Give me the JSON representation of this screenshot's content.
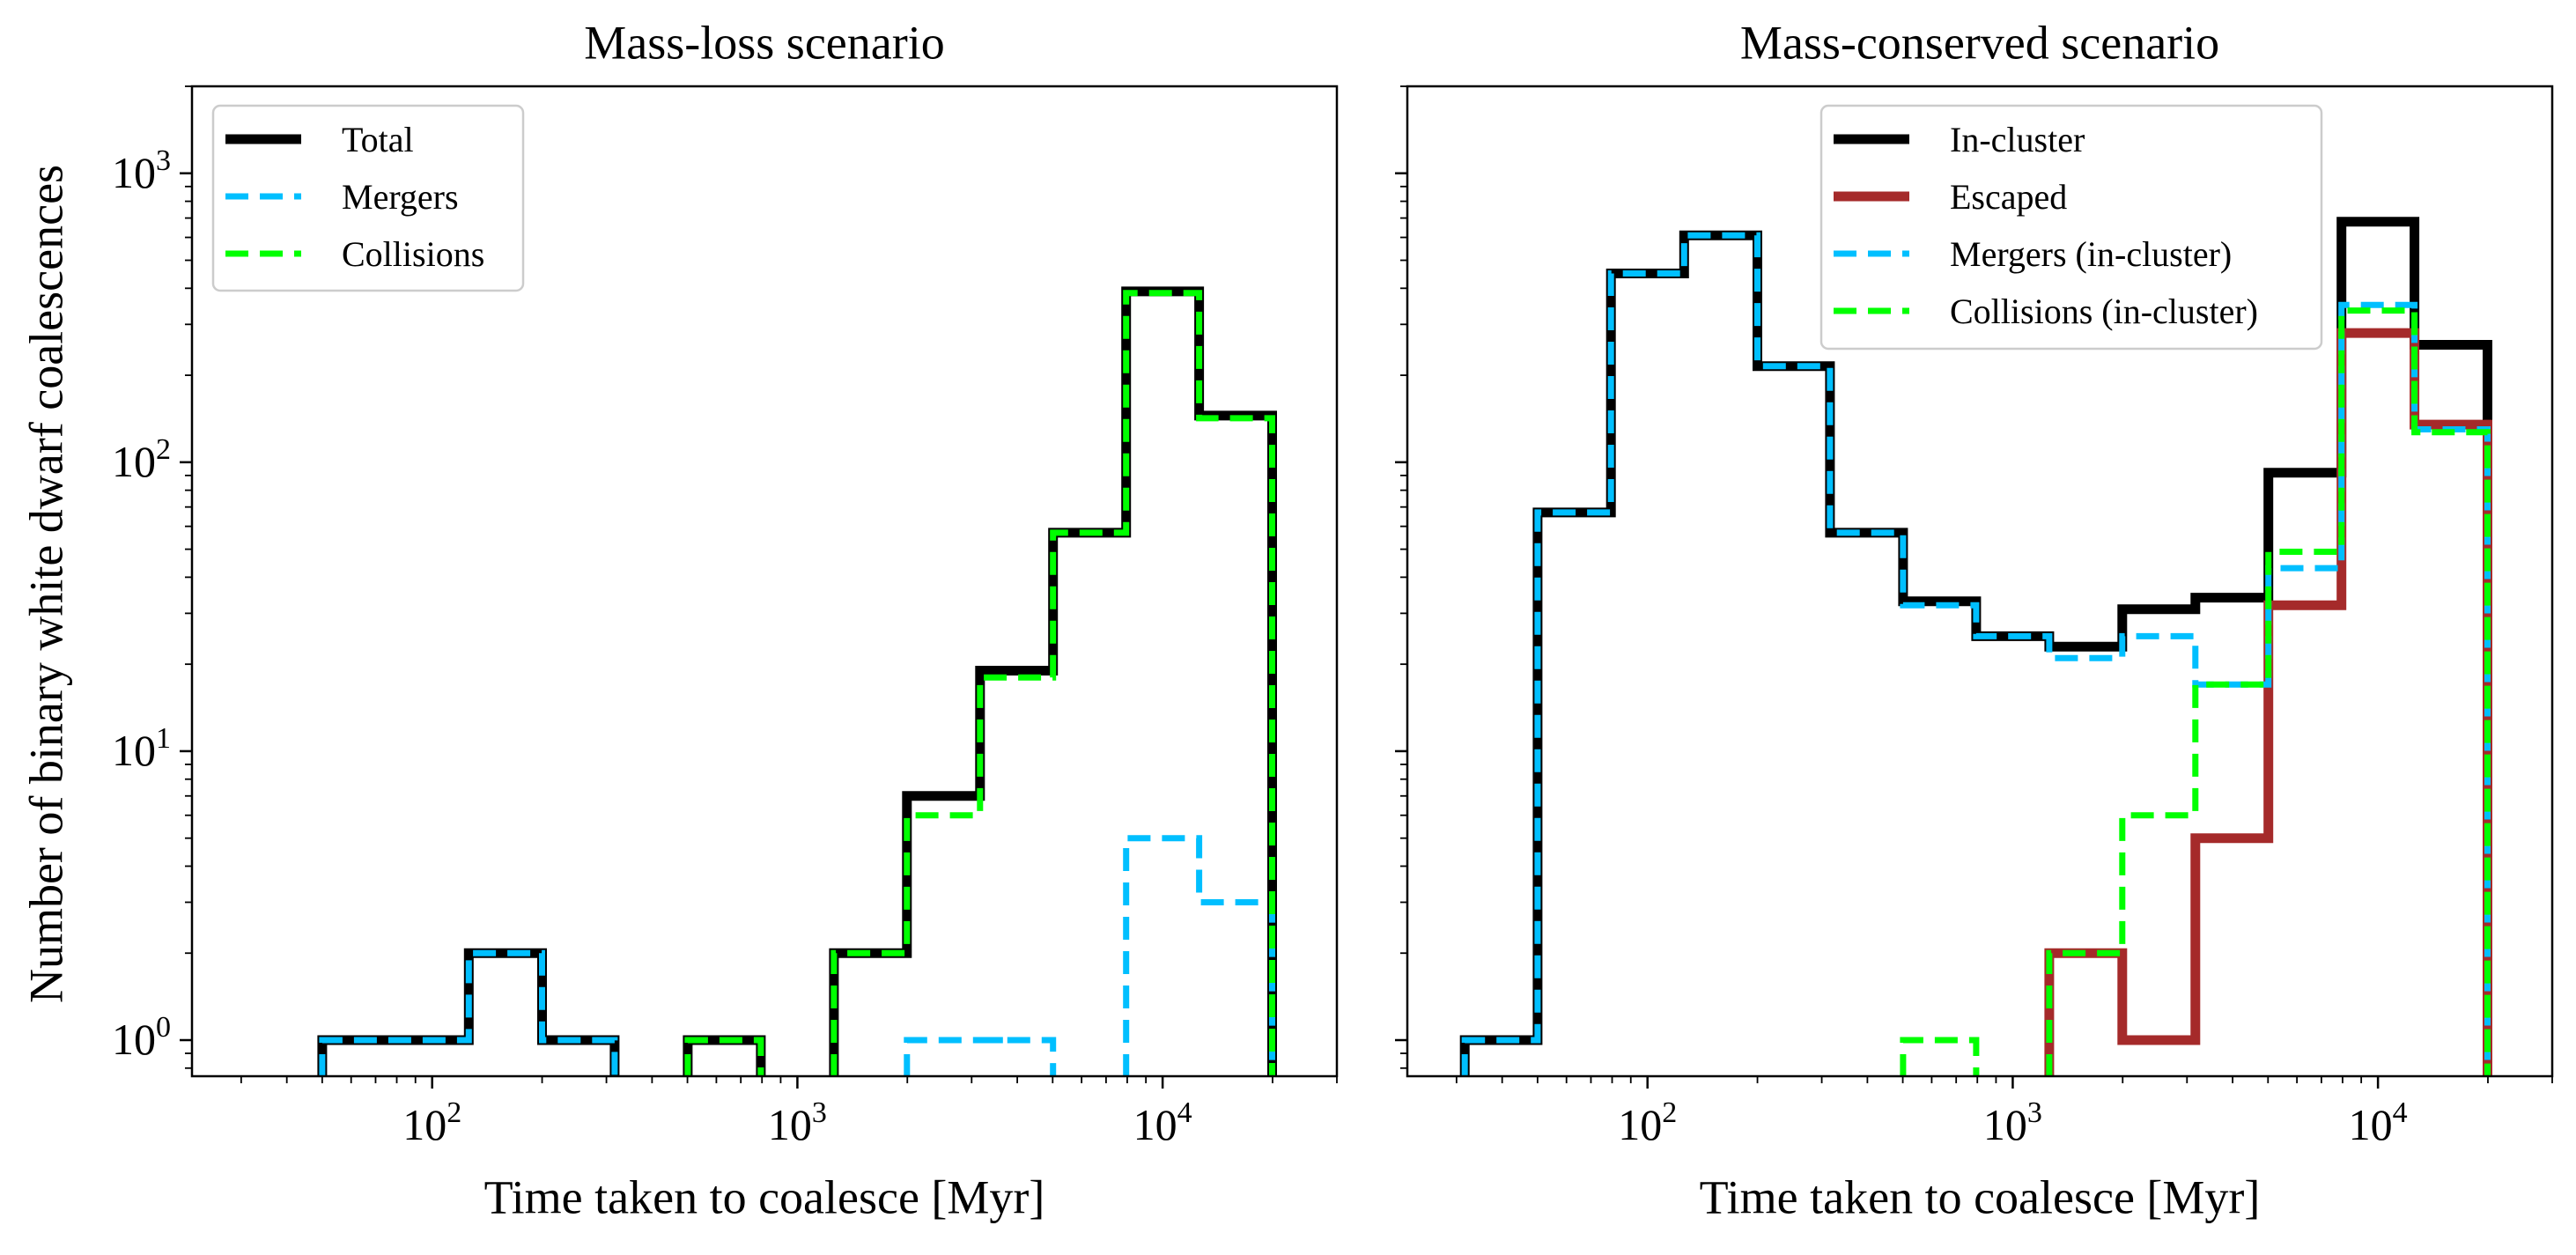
{
  "figure": {
    "ylabel": "Number of binary white dwarf coalescences"
  },
  "colors": {
    "total": "#000000",
    "escaped": "#a52a2a",
    "mergers": "#00bfff",
    "collisions": "#00ff00",
    "legend_border": "#cccccc"
  },
  "chart_data": [
    {
      "type": "histogram-step",
      "title": "Mass-loss scenario",
      "xlabel": "Time taken to coalesce [Myr]",
      "xscale": "log",
      "yscale": "log",
      "xlim": [
        22,
        30000
      ],
      "ylim": [
        0.75,
        2000
      ],
      "x_ticks": [
        {
          "value": 100,
          "base": "10",
          "exp": "2"
        },
        {
          "value": 1000,
          "base": "10",
          "exp": "3"
        },
        {
          "value": 10000,
          "base": "10",
          "exp": "4"
        }
      ],
      "y_ticks": [
        {
          "value": 1,
          "base": "10",
          "exp": "0"
        },
        {
          "value": 10,
          "base": "10",
          "exp": "1"
        },
        {
          "value": 100,
          "base": "10",
          "exp": "2"
        },
        {
          "value": 1000,
          "base": "10",
          "exp": "3"
        }
      ],
      "legend_position": "upper-left",
      "series": [
        {
          "name": "Total",
          "color_key": "total",
          "style": "solid",
          "bins": [
            [
              50,
              79.4,
              1
            ],
            [
              79.4,
              126,
              1
            ],
            [
              126,
              200,
              2
            ],
            [
              200,
              316,
              1
            ],
            [
              501,
              794,
              1
            ],
            [
              1259,
              1995,
              2
            ],
            [
              1995,
              3162,
              7
            ],
            [
              3162,
              5012,
              19
            ],
            [
              5012,
              7943,
              57
            ],
            [
              7943,
              12589,
              390
            ],
            [
              12589,
              19953,
              145
            ]
          ]
        },
        {
          "name": "Mergers",
          "color_key": "mergers",
          "style": "dashed",
          "bins": [
            [
              50,
              79.4,
              1
            ],
            [
              79.4,
              126,
              1
            ],
            [
              126,
              200,
              2
            ],
            [
              200,
              316,
              1
            ],
            [
              1995,
              3162,
              1
            ],
            [
              3162,
              5012,
              1
            ],
            [
              7943,
              12589,
              5
            ],
            [
              12589,
              19953,
              3
            ]
          ]
        },
        {
          "name": "Collisions",
          "color_key": "collisions",
          "style": "dashed",
          "bins": [
            [
              501,
              794,
              1
            ],
            [
              1259,
              1995,
              2
            ],
            [
              1995,
              3162,
              6
            ],
            [
              3162,
              5012,
              18
            ],
            [
              5012,
              7943,
              57
            ],
            [
              7943,
              12589,
              385
            ],
            [
              12589,
              19953,
              142
            ]
          ]
        }
      ]
    },
    {
      "type": "histogram-step",
      "title": "Mass-conserved scenario",
      "xlabel": "Time taken to coalesce [Myr]",
      "xscale": "log",
      "yscale": "log",
      "xlim": [
        22,
        30000
      ],
      "ylim": [
        0.75,
        2000
      ],
      "x_ticks": [
        {
          "value": 100,
          "base": "10",
          "exp": "2"
        },
        {
          "value": 1000,
          "base": "10",
          "exp": "3"
        },
        {
          "value": 10000,
          "base": "10",
          "exp": "4"
        }
      ],
      "y_ticks": [],
      "legend_position": "upper-center",
      "series": [
        {
          "name": "In-cluster",
          "color_key": "total",
          "style": "solid",
          "bins": [
            [
              31.6,
              50,
              1
            ],
            [
              50,
              79.4,
              67
            ],
            [
              79.4,
              126,
              450
            ],
            [
              126,
              200,
              610
            ],
            [
              200,
              316,
              215
            ],
            [
              316,
              501,
              57
            ],
            [
              501,
              794,
              33
            ],
            [
              794,
              1259,
              25
            ],
            [
              1259,
              1995,
              23
            ],
            [
              1995,
              3162,
              31
            ],
            [
              3162,
              5012,
              34
            ],
            [
              5012,
              7943,
              92
            ],
            [
              7943,
              12589,
              680
            ],
            [
              12589,
              19953,
              255
            ]
          ]
        },
        {
          "name": "Escaped",
          "color_key": "escaped",
          "style": "solid",
          "bins": [
            [
              1259,
              1995,
              2
            ],
            [
              1995,
              3162,
              1
            ],
            [
              3162,
              5012,
              5
            ],
            [
              5012,
              7943,
              32
            ],
            [
              7943,
              12589,
              280
            ],
            [
              12589,
              19953,
              135
            ]
          ]
        },
        {
          "name": "Mergers (in-cluster)",
          "color_key": "mergers",
          "style": "dashed",
          "bins": [
            [
              31.6,
              50,
              1
            ],
            [
              50,
              79.4,
              67
            ],
            [
              79.4,
              126,
              450
            ],
            [
              126,
              200,
              610
            ],
            [
              200,
              316,
              215
            ],
            [
              316,
              501,
              57
            ],
            [
              501,
              794,
              32
            ],
            [
              794,
              1259,
              25
            ],
            [
              1259,
              1995,
              21
            ],
            [
              1995,
              3162,
              25
            ],
            [
              3162,
              5012,
              17
            ],
            [
              5012,
              7943,
              43
            ],
            [
              7943,
              12589,
              350
            ],
            [
              12589,
              19953,
              130
            ]
          ]
        },
        {
          "name": "Collisions (in-cluster)",
          "color_key": "collisions",
          "style": "dashed",
          "bins": [
            [
              501,
              794,
              1
            ],
            [
              1259,
              1995,
              2
            ],
            [
              1995,
              3162,
              6
            ],
            [
              3162,
              5012,
              17
            ],
            [
              5012,
              7943,
              49
            ],
            [
              7943,
              12589,
              335
            ],
            [
              12589,
              19953,
              127
            ]
          ]
        }
      ]
    }
  ]
}
